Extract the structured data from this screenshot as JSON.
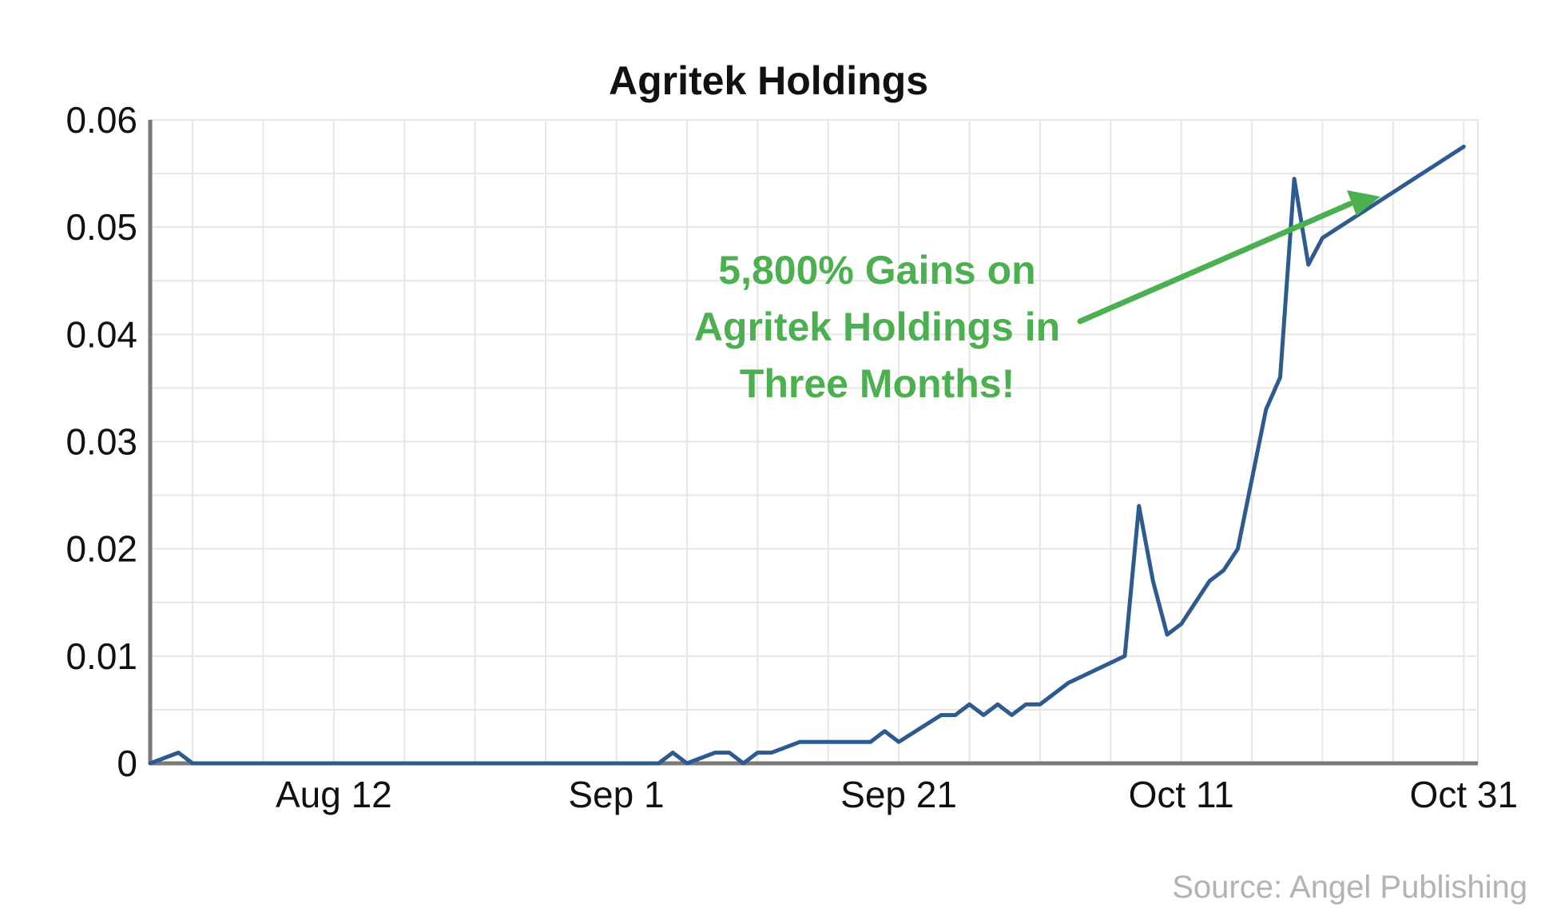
{
  "chart_data": {
    "type": "line",
    "title": "Agritek Holdings",
    "xlabel": "",
    "ylabel": "",
    "ylim": [
      0,
      0.06
    ],
    "y_ticks": [
      0,
      0.01,
      0.02,
      0.03,
      0.04,
      0.05,
      0.06
    ],
    "y_tick_labels": [
      "0",
      "0.01",
      "0.02",
      "0.03",
      "0.04",
      "0.05",
      "0.06"
    ],
    "x_tick_labels": [
      "Aug 12",
      "Sep 1",
      "Sep 21",
      "Oct 11",
      "Oct 31"
    ],
    "x_tick_dates": [
      "Aug 12",
      "Sep 1",
      "Sep 21",
      "Oct 11",
      "Oct 31"
    ],
    "x_range": [
      "Jul 30",
      "Nov 1"
    ],
    "grid": true,
    "legend": "none",
    "series": [
      {
        "color": "#2e5b8f",
        "points": [
          [
            "Jul 30",
            0.0
          ],
          [
            "Aug 1",
            0.001
          ],
          [
            "Aug 2",
            0.0
          ],
          [
            "Aug 15",
            0.0
          ],
          [
            "Aug 29",
            0.0
          ],
          [
            "Sep 4",
            0.0
          ],
          [
            "Sep 5",
            0.001
          ],
          [
            "Sep 6",
            0.0
          ],
          [
            "Sep 8",
            0.001
          ],
          [
            "Sep 9",
            0.001
          ],
          [
            "Sep 10",
            0.0
          ],
          [
            "Sep 11",
            0.001
          ],
          [
            "Sep 12",
            0.001
          ],
          [
            "Sep 14",
            0.002
          ],
          [
            "Sep 19",
            0.002
          ],
          [
            "Sep 20",
            0.003
          ],
          [
            "Sep 21",
            0.002
          ],
          [
            "Sep 24",
            0.0045
          ],
          [
            "Sep 25",
            0.0045
          ],
          [
            "Sep 26",
            0.0055
          ],
          [
            "Sep 27",
            0.0045
          ],
          [
            "Sep 28",
            0.0055
          ],
          [
            "Sep 29",
            0.0045
          ],
          [
            "Sep 30",
            0.0055
          ],
          [
            "Oct 1",
            0.0055
          ],
          [
            "Oct 3",
            0.0075
          ],
          [
            "Oct 7",
            0.01
          ],
          [
            "Oct 8",
            0.024
          ],
          [
            "Oct 9",
            0.017
          ],
          [
            "Oct 10",
            0.012
          ],
          [
            "Oct 11",
            0.013
          ],
          [
            "Oct 13",
            0.017
          ],
          [
            "Oct 14",
            0.018
          ],
          [
            "Oct 15",
            0.02
          ],
          [
            "Oct 17",
            0.033
          ],
          [
            "Oct 18",
            0.036
          ],
          [
            "Oct 19",
            0.0545
          ],
          [
            "Oct 20",
            0.0465
          ],
          [
            "Oct 21",
            0.049
          ],
          [
            "Oct 31",
            0.0575
          ]
        ]
      }
    ]
  },
  "annotation": {
    "lines": [
      "5,800% Gains on",
      "Agritek Holdings in",
      "Three Months!"
    ],
    "color": "#4caf50"
  },
  "source": "Source: Angel Publishing"
}
